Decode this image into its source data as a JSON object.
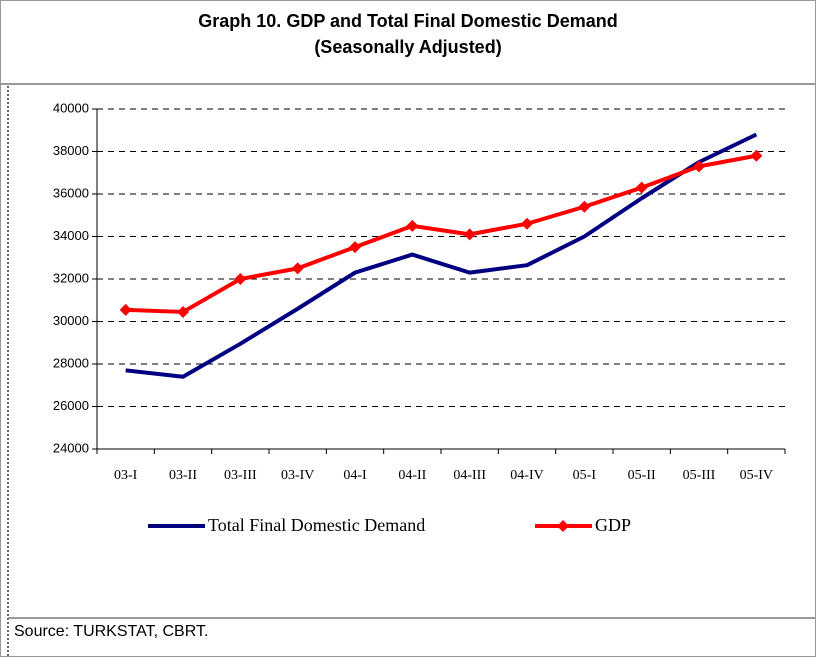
{
  "chart_data": {
    "type": "line",
    "title": "Graph 10. GDP and Total Final Domestic Demand",
    "subtitle": "(Seasonally Adjusted)",
    "categories": [
      "03-I",
      "03-II",
      "03-III",
      "03-IV",
      "04-I",
      "04-II",
      "04-III",
      "04-IV",
      "05-I",
      "05-II",
      "05-III",
      "05-IV"
    ],
    "series": [
      {
        "name": "Total Final Domestic Demand",
        "color": "#000080",
        "marker": "none",
        "values": [
          27700,
          27400,
          28950,
          30600,
          32300,
          33150,
          32300,
          32650,
          34000,
          35800,
          37500,
          38800
        ]
      },
      {
        "name": "GDP",
        "color": "#ff0000",
        "marker": "diamond",
        "values": [
          30550,
          30450,
          32000,
          32500,
          33500,
          34500,
          34100,
          34600,
          35400,
          36300,
          37300,
          37800
        ]
      }
    ],
    "ylim": [
      24000,
      40000
    ],
    "yticks": [
      24000,
      26000,
      28000,
      30000,
      32000,
      34000,
      36000,
      38000,
      40000
    ],
    "grid": true,
    "legend": "bottom",
    "source": "Source: TURKSTAT, CBRT."
  }
}
